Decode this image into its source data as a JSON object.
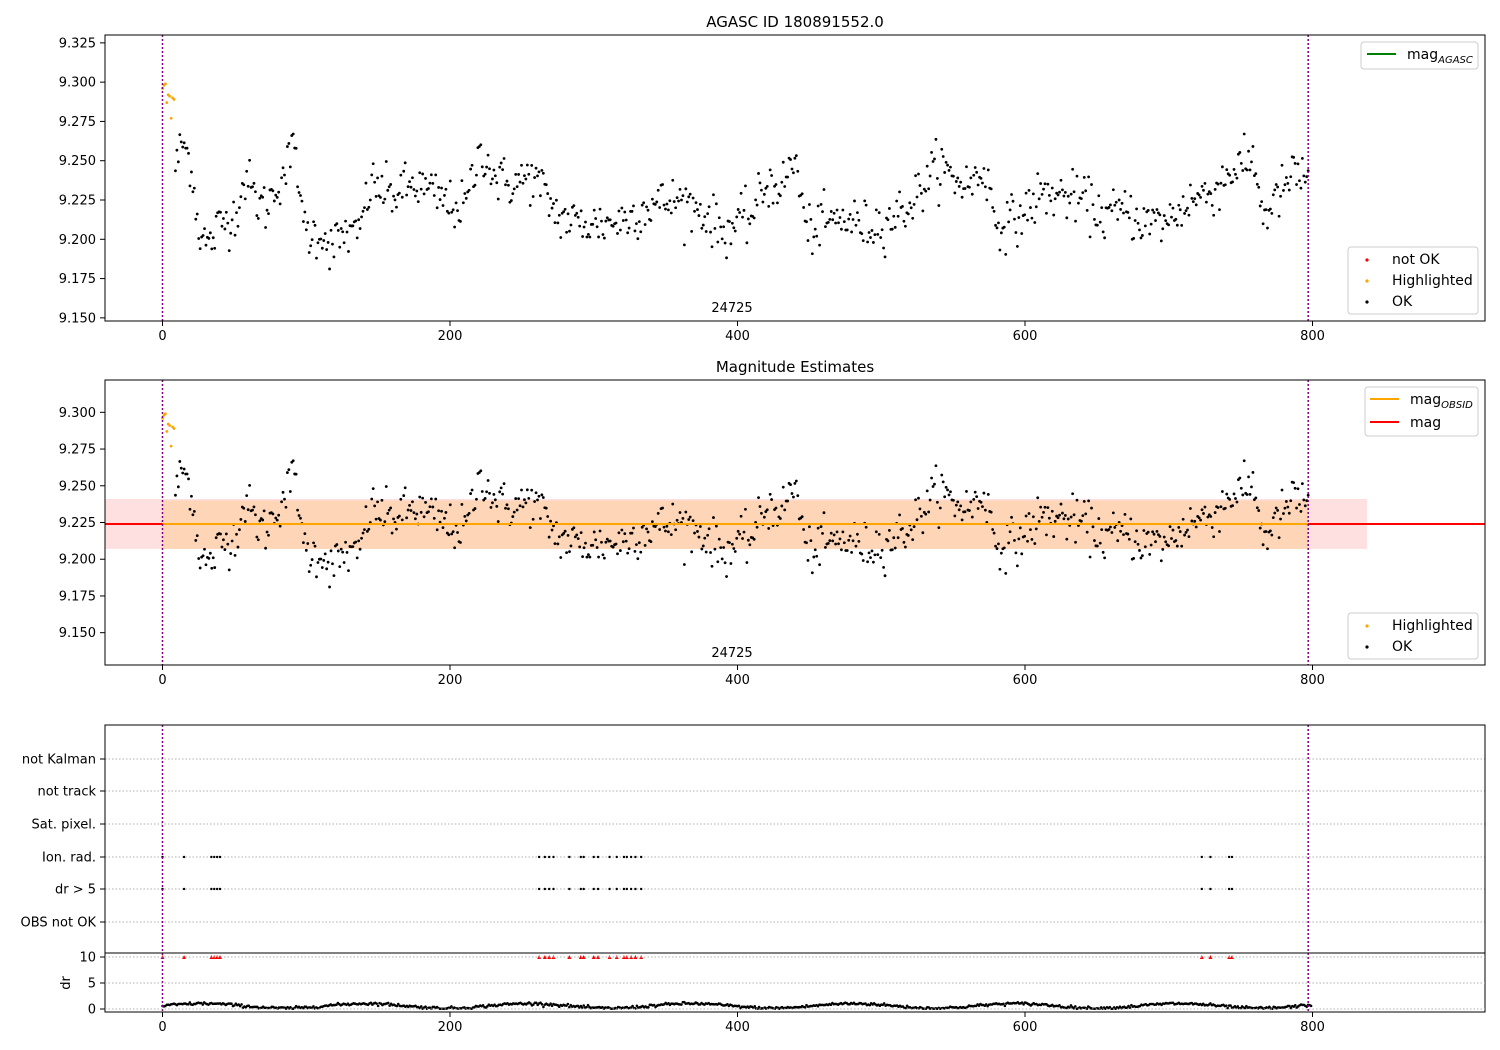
{
  "chart_data": [
    {
      "type": "scatter",
      "title": "AGASC ID 180891552.0",
      "xlabel": "",
      "ylabel": "",
      "obsid_label": "24725",
      "xlim": [
        -40,
        920
      ],
      "ylim": [
        9.148,
        9.33
      ],
      "x_ticks": [
        0,
        200,
        400,
        600,
        800
      ],
      "y_ticks": [
        9.15,
        9.175,
        9.2,
        9.225,
        9.25,
        9.275,
        9.3,
        9.325
      ],
      "y_tick_labels": [
        "9.150",
        "9.175",
        "9.200",
        "9.225",
        "9.250",
        "9.275",
        "9.300",
        "9.325"
      ],
      "obs_boundaries": [
        0,
        797
      ],
      "legend_lines": [
        {
          "label": "mag",
          "subscript": "AGASC",
          "color": "#008000"
        }
      ],
      "legend_markers": [
        {
          "label": "not OK",
          "color": "#ff0000"
        },
        {
          "label": "Highlighted",
          "color": "#ffa500"
        },
        {
          "label": "OK",
          "color": "#000000"
        }
      ],
      "series": [
        {
          "name": "Highlighted",
          "color": "#ffa500",
          "x": [
            0,
            1,
            2,
            3,
            4,
            5,
            6,
            7,
            8
          ],
          "y": [
            9.296,
            9.298,
            9.299,
            9.287,
            9.292,
            9.291,
            9.277,
            9.29,
            9.289
          ]
        },
        {
          "name": "OK",
          "color": "#000000",
          "anchors_x": [
            9,
            14,
            20,
            25,
            32,
            40,
            50,
            58,
            65,
            72,
            80,
            86,
            93,
            96,
            103,
            110,
            118,
            128,
            135,
            145,
            160,
            175,
            190,
            200,
            210,
            222,
            232,
            245,
            255,
            262,
            275,
            290,
            305,
            320,
            340,
            360,
            375,
            390,
            400,
            410,
            420,
            432,
            440,
            448,
            460,
            475,
            490,
            505,
            520,
            540,
            550,
            562,
            572,
            580,
            595,
            610,
            625,
            640,
            655,
            670,
            685,
            700,
            715,
            730,
            745,
            760,
            765,
            775,
            785,
            797
          ],
          "anchors_y": [
            9.246,
            9.262,
            9.248,
            9.207,
            9.195,
            9.21,
            9.215,
            9.24,
            9.225,
            9.22,
            9.235,
            9.245,
            9.262,
            9.215,
            9.202,
            9.205,
            9.195,
            9.205,
            9.2,
            9.235,
            9.228,
            9.235,
            9.228,
            9.222,
            9.22,
            9.258,
            9.238,
            9.235,
            9.24,
            9.235,
            9.215,
            9.21,
            9.21,
            9.212,
            9.222,
            9.225,
            9.218,
            9.205,
            9.21,
            9.215,
            9.235,
            9.235,
            9.252,
            9.205,
            9.21,
            9.213,
            9.208,
            9.212,
            9.222,
            9.248,
            9.238,
            9.235,
            9.245,
            9.21,
            9.212,
            9.228,
            9.228,
            9.225,
            9.215,
            9.218,
            9.21,
            9.212,
            9.225,
            9.23,
            9.245,
            9.25,
            9.215,
            9.225,
            9.24,
            9.24
          ],
          "noise": 0.013,
          "range": [
            9.177,
            9.267
          ],
          "count": 780
        }
      ]
    },
    {
      "type": "scatter",
      "title": "Magnitude Estimates",
      "xlabel": "",
      "ylabel": "",
      "obsid_label": "24725",
      "xlim": [
        -40,
        920
      ],
      "ylim": [
        9.128,
        9.322
      ],
      "x_ticks": [
        0,
        200,
        400,
        600,
        800
      ],
      "y_ticks": [
        9.15,
        9.175,
        9.2,
        9.225,
        9.25,
        9.275,
        9.3
      ],
      "y_tick_labels": [
        "9.150",
        "9.175",
        "9.200",
        "9.225",
        "9.250",
        "9.275",
        "9.300"
      ],
      "obs_boundaries": [
        0,
        797
      ],
      "mag_line": 9.224,
      "mag_obsid_line": 9.224,
      "mag_band": [
        9.207,
        9.241
      ],
      "mag_obsid_band": [
        9.207,
        9.24
      ],
      "band_xmax": 838,
      "legend_lines": [
        {
          "label": "mag",
          "subscript": "OBSID",
          "color": "#ffa500"
        },
        {
          "label": "mag",
          "subscript": "",
          "color": "#ff0000"
        }
      ],
      "legend_markers": [
        {
          "label": "Highlighted",
          "color": "#ffa500"
        },
        {
          "label": "OK",
          "color": "#000000"
        }
      ]
    },
    {
      "type": "scatter",
      "title": "",
      "xlabel": "",
      "ylabel": "dr",
      "xlim": [
        -40,
        920
      ],
      "x_ticks": [
        0,
        200,
        400,
        600,
        800
      ],
      "flag_rows": [
        "not Kalman",
        "not track",
        "Sat. pixel.",
        "Ion. rad.",
        "dr > 5",
        "OBS not OK"
      ],
      "flag_x": [
        0,
        15,
        34,
        36,
        38,
        40,
        262,
        266,
        269,
        272,
        283,
        291,
        293,
        300,
        303,
        311,
        316,
        321,
        323,
        326,
        329,
        333,
        723,
        729,
        742,
        744
      ],
      "dr_ylim": [
        0,
        10
      ],
      "dr_ticks": [
        0,
        5,
        10
      ],
      "dr_tick_labels": [
        "0",
        "5",
        "10"
      ],
      "dr_clipped_color": "#ff0000",
      "dr_noise": 0.35,
      "dr_level": 0.6
    }
  ]
}
